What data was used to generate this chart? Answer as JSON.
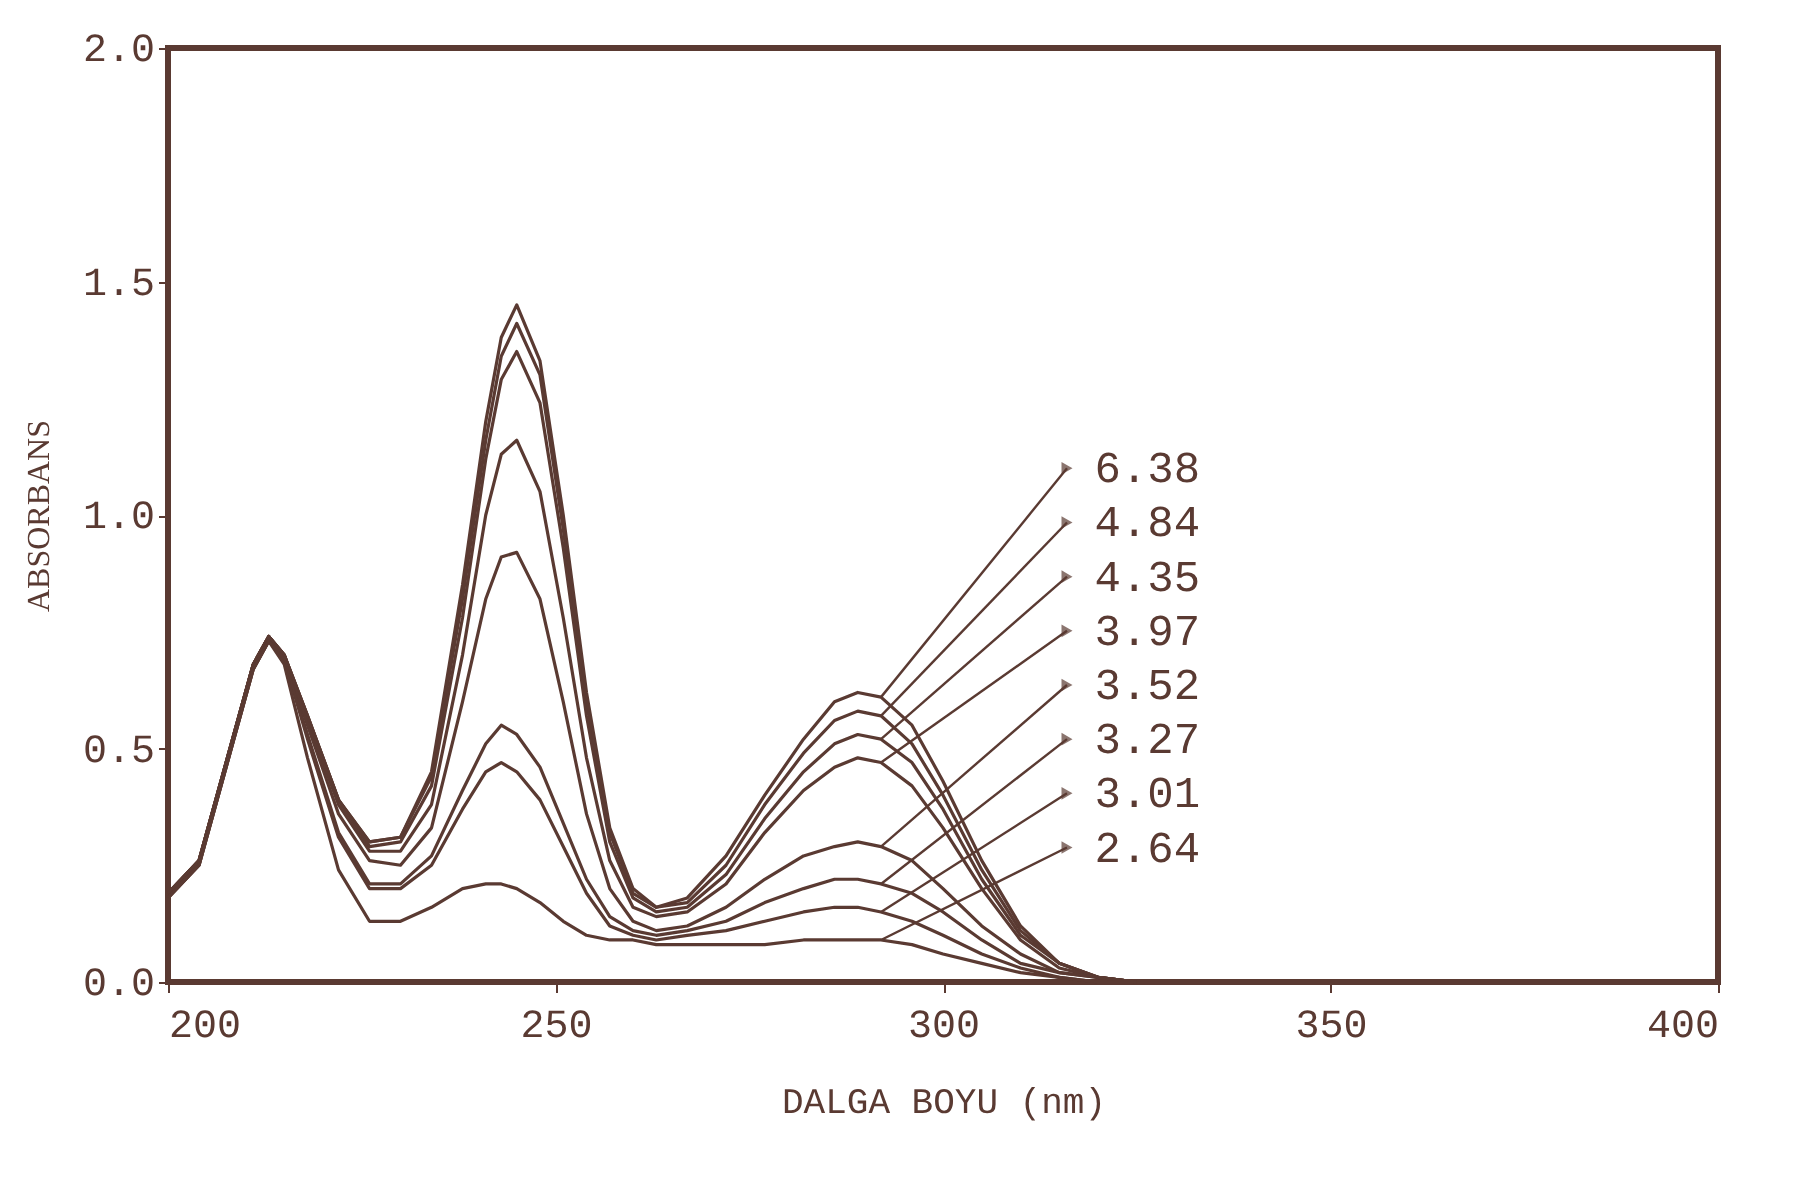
{
  "chart_data": {
    "type": "line",
    "xlabel": "DALGA BOYU (nm)",
    "ylabel": "ABSORBANS",
    "x": [
      200,
      204,
      208,
      211,
      213,
      215,
      218,
      222,
      226,
      230,
      234,
      238,
      241,
      243,
      245,
      248,
      251,
      254,
      257,
      260,
      263,
      267,
      272,
      277,
      282,
      286,
      289,
      292,
      296,
      300,
      305,
      310,
      315,
      320,
      325
    ],
    "series": [
      {
        "name": "6.38",
        "color": "#5a3a32",
        "values": [
          0.19,
          0.26,
          0.5,
          0.68,
          0.74,
          0.7,
          0.57,
          0.39,
          0.3,
          0.31,
          0.45,
          0.85,
          1.2,
          1.38,
          1.45,
          1.33,
          1.0,
          0.62,
          0.33,
          0.2,
          0.16,
          0.18,
          0.27,
          0.4,
          0.52,
          0.6,
          0.62,
          0.61,
          0.55,
          0.43,
          0.26,
          0.12,
          0.04,
          0.01,
          0.0
        ]
      },
      {
        "name": "4.84",
        "color": "#5a3a32",
        "values": [
          0.19,
          0.26,
          0.5,
          0.68,
          0.74,
          0.7,
          0.57,
          0.39,
          0.3,
          0.31,
          0.44,
          0.82,
          1.16,
          1.34,
          1.41,
          1.3,
          0.97,
          0.6,
          0.32,
          0.19,
          0.16,
          0.17,
          0.25,
          0.38,
          0.49,
          0.56,
          0.58,
          0.57,
          0.51,
          0.4,
          0.24,
          0.11,
          0.04,
          0.01,
          0.0
        ]
      },
      {
        "name": "4.35",
        "color": "#5a3a32",
        "values": [
          0.19,
          0.26,
          0.5,
          0.68,
          0.74,
          0.7,
          0.57,
          0.39,
          0.29,
          0.3,
          0.42,
          0.78,
          1.12,
          1.29,
          1.35,
          1.24,
          0.93,
          0.57,
          0.3,
          0.18,
          0.15,
          0.16,
          0.23,
          0.35,
          0.45,
          0.51,
          0.53,
          0.52,
          0.47,
          0.37,
          0.22,
          0.1,
          0.04,
          0.01,
          0.0
        ]
      },
      {
        "name": "3.97",
        "color": "#5a3a32",
        "values": [
          0.19,
          0.26,
          0.5,
          0.68,
          0.74,
          0.7,
          0.56,
          0.38,
          0.28,
          0.28,
          0.38,
          0.7,
          1.0,
          1.13,
          1.16,
          1.05,
          0.78,
          0.48,
          0.26,
          0.16,
          0.14,
          0.15,
          0.21,
          0.32,
          0.41,
          0.46,
          0.48,
          0.47,
          0.42,
          0.33,
          0.2,
          0.09,
          0.03,
          0.01,
          0.0
        ]
      },
      {
        "name": "3.52",
        "color": "#5a3a32",
        "values": [
          0.19,
          0.26,
          0.5,
          0.68,
          0.74,
          0.7,
          0.55,
          0.36,
          0.26,
          0.25,
          0.33,
          0.6,
          0.82,
          0.91,
          0.92,
          0.82,
          0.6,
          0.36,
          0.2,
          0.13,
          0.11,
          0.12,
          0.16,
          0.22,
          0.27,
          0.29,
          0.3,
          0.29,
          0.26,
          0.2,
          0.12,
          0.06,
          0.02,
          0.01,
          0.0
        ]
      },
      {
        "name": "3.27",
        "color": "#5a3a32",
        "values": [
          0.18,
          0.25,
          0.49,
          0.67,
          0.73,
          0.69,
          0.53,
          0.32,
          0.21,
          0.21,
          0.27,
          0.41,
          0.51,
          0.55,
          0.53,
          0.46,
          0.34,
          0.22,
          0.14,
          0.11,
          0.1,
          0.11,
          0.13,
          0.17,
          0.2,
          0.22,
          0.22,
          0.21,
          0.19,
          0.15,
          0.09,
          0.04,
          0.02,
          0.01,
          0.0
        ]
      },
      {
        "name": "3.01",
        "color": "#5a3a32",
        "values": [
          0.18,
          0.25,
          0.49,
          0.67,
          0.73,
          0.69,
          0.52,
          0.31,
          0.2,
          0.2,
          0.25,
          0.37,
          0.45,
          0.47,
          0.45,
          0.39,
          0.29,
          0.19,
          0.12,
          0.1,
          0.09,
          0.1,
          0.11,
          0.13,
          0.15,
          0.16,
          0.16,
          0.15,
          0.13,
          0.1,
          0.06,
          0.03,
          0.01,
          0.0,
          0.0
        ]
      },
      {
        "name": "2.64",
        "color": "#5a3a32",
        "values": [
          0.18,
          0.25,
          0.49,
          0.67,
          0.73,
          0.68,
          0.48,
          0.24,
          0.13,
          0.13,
          0.16,
          0.2,
          0.21,
          0.21,
          0.2,
          0.17,
          0.13,
          0.1,
          0.09,
          0.09,
          0.08,
          0.08,
          0.08,
          0.08,
          0.09,
          0.09,
          0.09,
          0.09,
          0.08,
          0.06,
          0.04,
          0.02,
          0.01,
          0.0,
          0.0
        ]
      }
    ],
    "xlim": [
      200,
      400
    ],
    "xticks": [
      200,
      250,
      300,
      350,
      400
    ],
    "ylim": [
      0,
      2
    ],
    "yticks": [
      {
        "value": 0,
        "label": "0.0"
      },
      {
        "value": 0.5,
        "label": "0.5"
      },
      {
        "value": 1,
        "label": "1.0"
      },
      {
        "value": 1.5,
        "label": "1.5"
      },
      {
        "value": 2,
        "label": "2.0"
      }
    ],
    "grid": false,
    "legend": "right",
    "marker": "none",
    "line_style": "solid"
  }
}
